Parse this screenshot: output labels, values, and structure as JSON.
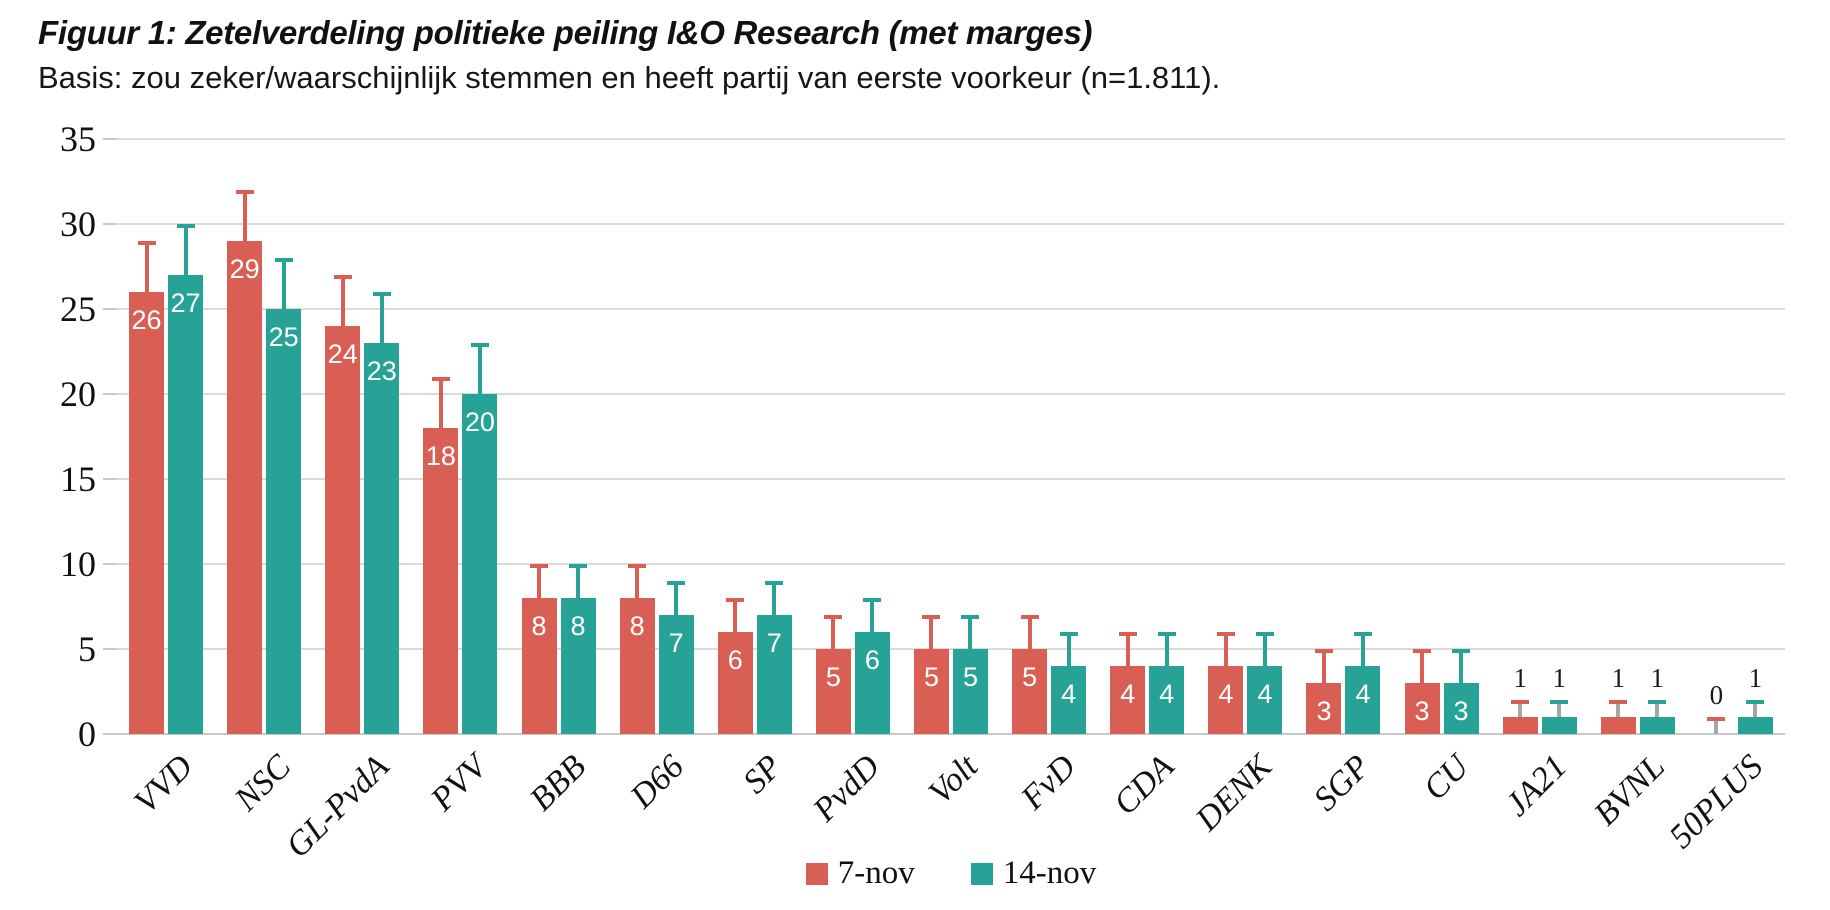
{
  "chart_data": {
    "type": "bar",
    "title": "Figuur 1: Zetelverdeling politieke peiling I&O Research (met marges)",
    "subtitle": "Basis: zou zeker/waarschijnlijk stemmen en heeft partij van eerste voorkeur (n=1.811).",
    "categories": [
      "VVD",
      "NSC",
      "GL-PvdA",
      "PVV",
      "BBB",
      "D66",
      "SP",
      "PvdD",
      "Volt",
      "FvD",
      "CDA",
      "DENK",
      "SGP",
      "CU",
      "JA21",
      "BVNL",
      "50PLUS"
    ],
    "series": [
      {
        "name": "7-nov",
        "color": "#D95F55",
        "values": [
          26,
          29,
          24,
          18,
          8,
          8,
          6,
          5,
          5,
          5,
          4,
          4,
          3,
          3,
          1,
          1,
          0
        ],
        "upper_margin": [
          29,
          32,
          27,
          21,
          10,
          10,
          8,
          7,
          7,
          7,
          6,
          6,
          5,
          5,
          2,
          2,
          1
        ]
      },
      {
        "name": "14-nov",
        "color": "#27A297",
        "values": [
          27,
          25,
          23,
          20,
          8,
          7,
          7,
          6,
          5,
          4,
          4,
          4,
          4,
          3,
          1,
          1,
          1
        ],
        "upper_margin": [
          30,
          28,
          26,
          23,
          10,
          9,
          9,
          8,
          7,
          6,
          6,
          6,
          6,
          5,
          2,
          2,
          2
        ]
      }
    ],
    "xlabel": "",
    "ylabel": "",
    "ylim": [
      0,
      35
    ],
    "yticks": [
      0,
      5,
      10,
      15,
      20,
      25,
      30,
      35
    ],
    "grid": true,
    "legend_position": "bottom",
    "error_bars": "upper margins drawn as whisker caps above each bar"
  },
  "colors": {
    "gridline": "#DADADA",
    "axis_line": "#C9C9C9",
    "small_bar_stem": "#A6A6A6",
    "label_inside": "#FFFFFF",
    "label_outside": "#1A1A1A",
    "text": "#111111"
  }
}
